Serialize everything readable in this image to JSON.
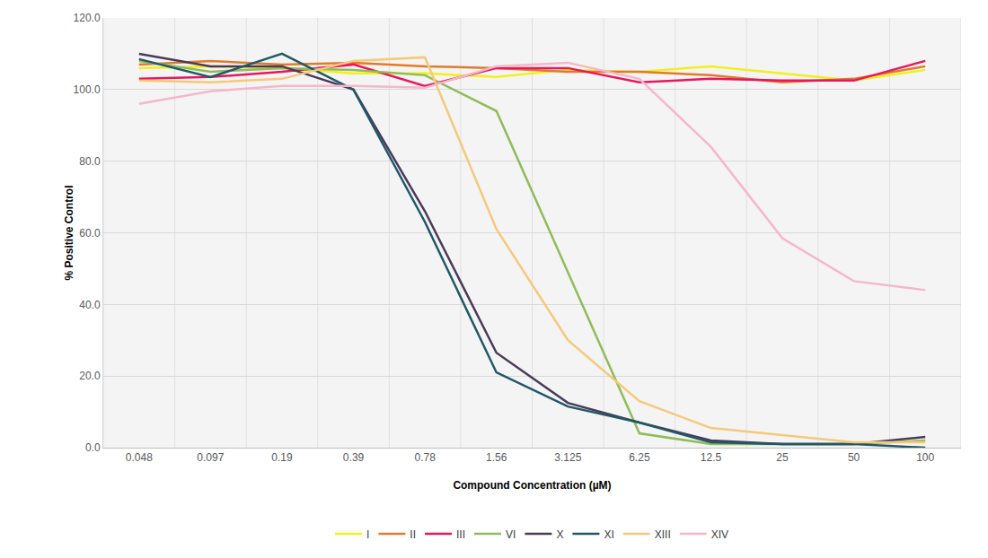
{
  "chart_data": {
    "type": "line",
    "x_label": "Compound Concentration (µM)",
    "y_label": "% Positive Control",
    "categories": [
      "0.048",
      "0.097",
      "0.19",
      "0.39",
      "0.78",
      "1.56",
      "3.125",
      "6.25",
      "12.5",
      "25",
      "50",
      "100"
    ],
    "ylim": [
      0,
      120
    ],
    "yticks": [
      {
        "value": 0,
        "label": "0.0"
      },
      {
        "value": 20,
        "label": "20.0"
      },
      {
        "value": 40,
        "label": "40.0"
      },
      {
        "value": 60,
        "label": "60.0"
      },
      {
        "value": 80,
        "label": "80.0"
      },
      {
        "value": 100,
        "label": "100.0"
      },
      {
        "value": 120,
        "label": "120.0"
      }
    ],
    "grid": true,
    "legend": "bottom",
    "series": [
      {
        "name": "I",
        "color": "#f2ef1c",
        "values": [
          106,
          106.5,
          106,
          104.5,
          104.5,
          103.5,
          105.5,
          105,
          106.5,
          104.5,
          102.5,
          105.5
        ]
      },
      {
        "name": "II",
        "color": "#e07b2a",
        "values": [
          107,
          108,
          107,
          107.5,
          106.5,
          106,
          105,
          105,
          104,
          102,
          103,
          106.5
        ]
      },
      {
        "name": "III",
        "color": "#e8175d",
        "values": [
          103,
          103.5,
          105,
          107,
          101,
          106,
          106,
          102,
          103,
          102.5,
          102.5,
          108
        ]
      },
      {
        "name": "VI",
        "color": "#8fbc5a",
        "values": [
          108,
          105,
          106,
          105.5,
          104,
          94,
          49,
          4,
          1,
          1,
          1,
          2
        ]
      },
      {
        "name": "X",
        "color": "#4b3a5a",
        "values": [
          110,
          106.5,
          106.5,
          100,
          66,
          26.5,
          12.5,
          7,
          2,
          1,
          1,
          3
        ]
      },
      {
        "name": "XI",
        "color": "#205868",
        "values": [
          108.5,
          103.5,
          110,
          100,
          63,
          21,
          11.5,
          7,
          1.5,
          1,
          1,
          0
        ]
      },
      {
        "name": "XIII",
        "color": "#f5c97a",
        "values": [
          102.5,
          102,
          103,
          108,
          109,
          61,
          30,
          13,
          5.5,
          3.5,
          1.5,
          1.5
        ]
      },
      {
        "name": "XIV",
        "color": "#f5b7c9",
        "values": [
          96,
          99.5,
          101,
          101,
          100.5,
          106.5,
          107.5,
          103,
          84,
          58.5,
          46.5,
          44
        ]
      }
    ]
  }
}
